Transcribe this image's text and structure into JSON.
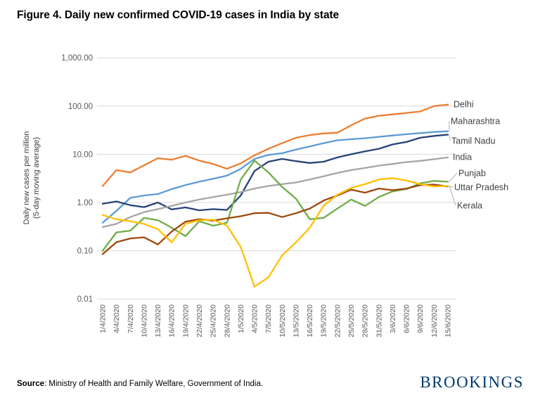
{
  "figure": {
    "title": "Figure 4. Daily new confirmed COVID-19 cases in India by state",
    "source_label": "Source",
    "source_text": ": Ministry of Health and Family Welfare, Government of India.",
    "logo_text": "BROOKINGS",
    "logo_color": "#003A70"
  },
  "chart_data": {
    "type": "line",
    "title": "Figure 4. Daily new confirmed COVID-19 cases in India by state",
    "ylabel_line1": "Daily new cases per million",
    "ylabel_line2": "(5-day moving average)",
    "y_scale": "log",
    "ylim": [
      0.01,
      1000
    ],
    "grid": "horizontal",
    "legend_position": "right-end-labels",
    "grid_color": "#D9D9D9",
    "tick_label_color": "#595959",
    "series_label_color": "#404040",
    "y_ticks": [
      {
        "value": 1000,
        "label": "1,000.00"
      },
      {
        "value": 100,
        "label": "100.00"
      },
      {
        "value": 10,
        "label": "10.00"
      },
      {
        "value": 1,
        "label": "1.00"
      },
      {
        "value": 0.1,
        "label": "0.10"
      },
      {
        "value": 0.01,
        "label": "0.01"
      }
    ],
    "x_tick_labels": [
      "1/4/2020",
      "4/4/2020",
      "7/4/2020",
      "10/4/2020",
      "13/4/2020",
      "16/4/2020",
      "19/4/2020",
      "22/4/2020",
      "25/4/2020",
      "28/4/2020",
      "1/5/2020",
      "4/5/2020",
      "7/5/2020",
      "10/5/2020",
      "13/5/2020",
      "16/5/2020",
      "19/5/2020",
      "22/5/2020",
      "25/5/2020",
      "28/5/2020",
      "31/5/2020",
      "3/6/2020",
      "6/6/2020",
      "9/6/2020",
      "12/6/2020",
      "15/6/2020"
    ],
    "series": [
      {
        "name": "Delhi",
        "color": "#ED7D31",
        "values": [
          2.2,
          4.7,
          4.2,
          5.9,
          8.3,
          7.7,
          9.3,
          7.4,
          6.3,
          5.0,
          6.5,
          9.5,
          13,
          17,
          22,
          25,
          27,
          28,
          40,
          55,
          63,
          67,
          72,
          77,
          100,
          107
        ]
      },
      {
        "name": "Maharashtra",
        "color": "#5B9BD5",
        "values": [
          0.38,
          0.67,
          1.25,
          1.4,
          1.5,
          1.9,
          2.3,
          2.7,
          3.1,
          3.6,
          5.0,
          8.0,
          9.7,
          10.5,
          12.5,
          14.5,
          17,
          19.5,
          20.5,
          21.5,
          23,
          24.5,
          26,
          27.5,
          29,
          30
        ]
      },
      {
        "name": "Tamil Nadu",
        "color": "#264478",
        "values": [
          0.94,
          1.05,
          0.88,
          0.8,
          1.0,
          0.72,
          0.79,
          0.69,
          0.73,
          0.7,
          1.4,
          4.5,
          7.0,
          8.0,
          7.2,
          6.6,
          7.0,
          8.6,
          10,
          11.5,
          13,
          16,
          18,
          22,
          24,
          25.5
        ]
      },
      {
        "name": "India",
        "color": "#A5A5A5",
        "values": [
          0.31,
          0.36,
          0.5,
          0.63,
          0.73,
          0.85,
          1.0,
          1.15,
          1.3,
          1.45,
          1.65,
          1.95,
          2.2,
          2.4,
          2.6,
          3.0,
          3.5,
          4.1,
          4.7,
          5.2,
          5.8,
          6.3,
          6.9,
          7.3,
          7.9,
          8.6
        ]
      },
      {
        "name": "Punjab",
        "color": "#70AD47",
        "values": [
          0.1,
          0.24,
          0.26,
          0.48,
          0.43,
          0.3,
          0.2,
          0.41,
          0.33,
          0.38,
          3.0,
          7.4,
          4.2,
          2.1,
          1.2,
          0.45,
          0.48,
          0.75,
          1.15,
          0.85,
          1.3,
          1.7,
          1.9,
          2.5,
          2.8,
          2.7
        ]
      },
      {
        "name": "Uttar Pradesh",
        "color": "#9E480E",
        "values": [
          0.085,
          0.15,
          0.18,
          0.19,
          0.135,
          0.25,
          0.4,
          0.45,
          0.42,
          0.47,
          0.52,
          0.6,
          0.61,
          0.5,
          0.6,
          0.75,
          1.1,
          1.4,
          1.85,
          1.6,
          1.95,
          1.8,
          1.95,
          2.3,
          2.35,
          2.15
        ]
      },
      {
        "name": "Kerala",
        "color": "#FFC000",
        "values": [
          0.55,
          0.45,
          0.41,
          0.36,
          0.28,
          0.15,
          0.36,
          0.43,
          0.44,
          0.33,
          0.12,
          0.018,
          0.028,
          0.08,
          0.15,
          0.3,
          0.85,
          1.45,
          2.0,
          2.4,
          3.0,
          3.2,
          2.85,
          2.4,
          2.15,
          2.2
        ]
      }
    ]
  }
}
